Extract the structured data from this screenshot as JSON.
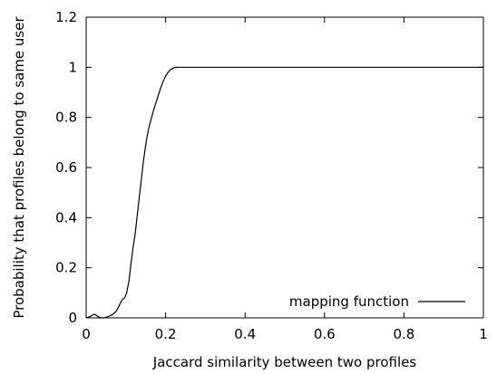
{
  "chart_data": {
    "type": "line",
    "title": "",
    "xlabel": "Jaccard similarity between two profiles",
    "ylabel": "Probability that profiles belong to same user",
    "xlim": [
      0,
      1
    ],
    "ylim": [
      0,
      1.2
    ],
    "xticks": [
      {
        "value": 0,
        "label": "0"
      },
      {
        "value": 0.2,
        "label": "0.2"
      },
      {
        "value": 0.4,
        "label": "0.4"
      },
      {
        "value": 0.6,
        "label": "0.6"
      },
      {
        "value": 0.8,
        "label": "0.8"
      },
      {
        "value": 1,
        "label": "1"
      }
    ],
    "yticks": [
      {
        "value": 0,
        "label": "0"
      },
      {
        "value": 0.2,
        "label": "0.2"
      },
      {
        "value": 0.4,
        "label": "0.4"
      },
      {
        "value": 0.6,
        "label": "0.6"
      },
      {
        "value": 0.8,
        "label": "0.8"
      },
      {
        "value": 1,
        "label": "1"
      },
      {
        "value": 1.2,
        "label": "1.2"
      }
    ],
    "grid": false,
    "legend_position": "bottom-right",
    "series": [
      {
        "name": "mapping function",
        "color": "#000000",
        "x": [
          0,
          0.01,
          0.017,
          0.022,
          0.027,
          0.035,
          0.045,
          0.055,
          0.065,
          0.075,
          0.082,
          0.088,
          0.092,
          0.097,
          0.102,
          0.108,
          0.113,
          0.118,
          0.123,
          0.128,
          0.133,
          0.138,
          0.143,
          0.148,
          0.153,
          0.158,
          0.163,
          0.17,
          0.178,
          0.186,
          0.194,
          0.2,
          0.206,
          0.212,
          0.218,
          0.223,
          0.23,
          0.24,
          0.26,
          0.3,
          0.4,
          0.5,
          0.6,
          0.7,
          0.8,
          0.9,
          1.0
        ],
        "y": [
          0,
          0.005,
          0.012,
          0.014,
          0.008,
          0,
          0,
          0.005,
          0.012,
          0.025,
          0.045,
          0.065,
          0.075,
          0.08,
          0.1,
          0.15,
          0.22,
          0.28,
          0.33,
          0.4,
          0.47,
          0.54,
          0.61,
          0.67,
          0.72,
          0.76,
          0.79,
          0.83,
          0.87,
          0.91,
          0.945,
          0.965,
          0.98,
          0.99,
          0.996,
          0.999,
          1,
          1,
          1,
          1,
          1,
          1,
          1,
          1,
          1,
          1,
          1
        ]
      }
    ]
  }
}
